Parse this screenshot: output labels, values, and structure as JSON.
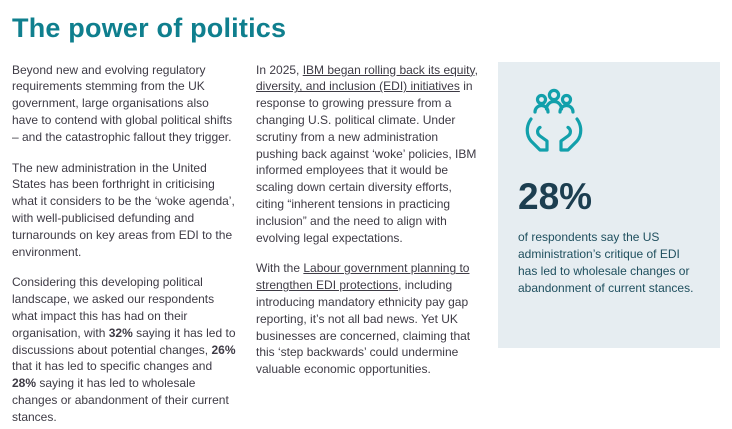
{
  "page": {
    "title": "The power of politics"
  },
  "colors": {
    "accent": "#0f7f8e",
    "icon": "#12a0ab",
    "card_bg": "#e6edf1",
    "stat": "#1c3e50",
    "card_text": "#20505f",
    "body_text": "#3e3b45"
  },
  "left_column": {
    "paragraphs": [
      {
        "segments": [
          {
            "t": "Beyond new and evolving regulatory requirements stemming from the UK government, large organisations also have to contend with global political shifts – and the catastrophic fallout they trigger."
          }
        ]
      },
      {
        "segments": [
          {
            "t": "The new administration in the United States has been forthright in criticising what it considers to be the ‘woke agenda’, with well-publicised defunding and turnarounds on key areas from EDI to the environment."
          }
        ]
      },
      {
        "segments": [
          {
            "t": "Considering this developing political landscape, we asked our respondents what impact this has had on their organisation, with "
          },
          {
            "t": "32%",
            "b": true,
            "name": "stat-32-percent"
          },
          {
            "t": " saying it has led to discussions about potential changes, "
          },
          {
            "t": "26%",
            "b": true,
            "name": "stat-26-percent"
          },
          {
            "t": " that it has led to specific changes and "
          },
          {
            "t": "28%",
            "b": true,
            "name": "stat-28-percent"
          },
          {
            "t": " saying it has led to wholesale changes or abandonment of their current stances."
          }
        ]
      }
    ]
  },
  "middle_column": {
    "paragraphs": [
      {
        "segments": [
          {
            "t": "In 2025, "
          },
          {
            "t": "IBM began rolling back its equity, diversity, and inclusion (EDI) initiatives",
            "u": true,
            "link": true,
            "name": "ibm-edi-rollback-link"
          },
          {
            "t": " in response to growing pressure from a changing U.S. political climate. Under scrutiny from a new administration pushing back against ‘woke’ policies, IBM informed employees that it would be scaling down certain diversity efforts, citing “inherent tensions in practicing inclusion” and the need to align with evolving legal expectations."
          }
        ]
      },
      {
        "segments": [
          {
            "t": "With the "
          },
          {
            "t": "Labour government planning to strengthen EDI protections",
            "u": true,
            "link": true,
            "name": "labour-edi-protections-link"
          },
          {
            "t": ", including introducing mandatory ethnicity pay gap reporting, it’s not all bad news. Yet UK businesses are concerned, claiming that this ‘step backwards’ could undermine valuable economic opportunities."
          }
        ]
      }
    ]
  },
  "stat_card": {
    "icon": "hands-holding-people-icon",
    "value": "28%",
    "description": "of respondents say the US administration’s critique of EDI has led to wholesale changes or abandonment of current stances."
  }
}
